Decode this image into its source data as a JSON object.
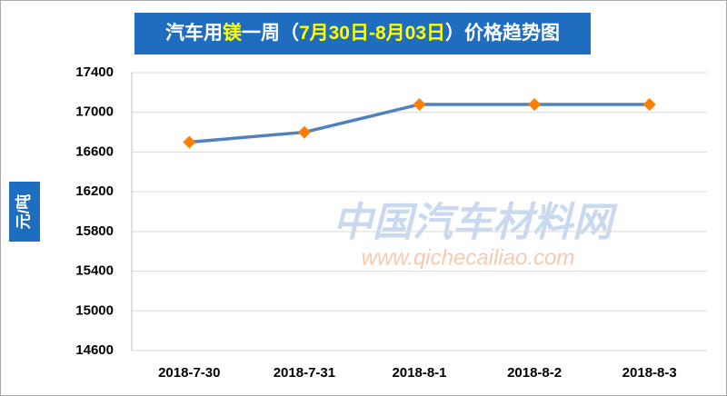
{
  "chart_data": {
    "type": "line",
    "title_parts": [
      {
        "text": "汽车用",
        "color": "#ffffff"
      },
      {
        "text": "镁",
        "color": "#ffff00"
      },
      {
        "text": "一周（",
        "color": "#ffffff"
      },
      {
        "text": "7月30日-8月03日",
        "color": "#ffff00"
      },
      {
        "text": "）价格趋势图",
        "color": "#ffffff"
      }
    ],
    "y_label": "元/吨",
    "categories": [
      "2018-7-30",
      "2018-7-31",
      "2018-8-1",
      "2018-8-2",
      "2018-8-3"
    ],
    "series": [
      {
        "name": "镁",
        "color": "#4f81bd",
        "marker_color": "#ff7f00",
        "values": [
          16700,
          16800,
          17080,
          17080,
          17080
        ]
      }
    ],
    "ylim": [
      14600,
      17400
    ],
    "yticks": [
      14600,
      15000,
      15400,
      15800,
      16200,
      16600,
      17000,
      17400
    ],
    "grid": true,
    "watermark": {
      "name": "中国汽车材料网",
      "url": "www.qichecailiao.com"
    }
  }
}
